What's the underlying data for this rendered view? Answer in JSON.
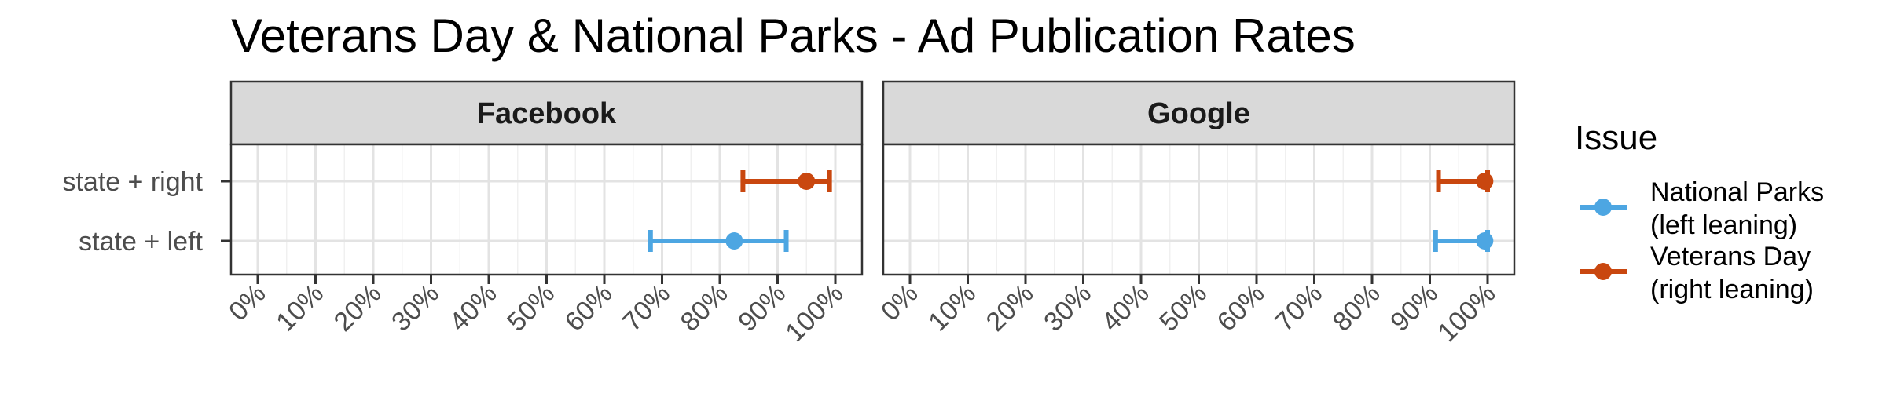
{
  "chart_data": {
    "type": "errorbar",
    "title": "Veterans Day & National Parks - Ad Publication Rates",
    "x_ticks": [
      "0%",
      "10%",
      "20%",
      "30%",
      "40%",
      "50%",
      "60%",
      "70%",
      "80%",
      "90%",
      "100%"
    ],
    "xlim": [
      0,
      100
    ],
    "grid": true,
    "legend": {
      "title": "Issue",
      "placement": "right",
      "entries": [
        {
          "line1": "National Parks",
          "line2": "(left leaning)",
          "color": "#4da6e2"
        },
        {
          "line1": "Veterans Day",
          "line2": "(right leaning)",
          "color": "#c9470f"
        }
      ]
    },
    "categories": [
      "state + right",
      "state + left"
    ],
    "panels": [
      {
        "label": "Facebook",
        "series": [
          {
            "category": "state + right",
            "value": 95,
            "low": 84,
            "high": 99,
            "color": "#c9470f"
          },
          {
            "category": "state + left",
            "value": 82.5,
            "low": 68,
            "high": 91.5,
            "color": "#4da6e2"
          }
        ]
      },
      {
        "label": "Google",
        "series": [
          {
            "category": "state + right",
            "value": 99.5,
            "low": 91.5,
            "high": 100,
            "color": "#c9470f"
          },
          {
            "category": "state + left",
            "value": 99.5,
            "low": 91,
            "high": 100,
            "color": "#4da6e2"
          }
        ]
      }
    ]
  }
}
